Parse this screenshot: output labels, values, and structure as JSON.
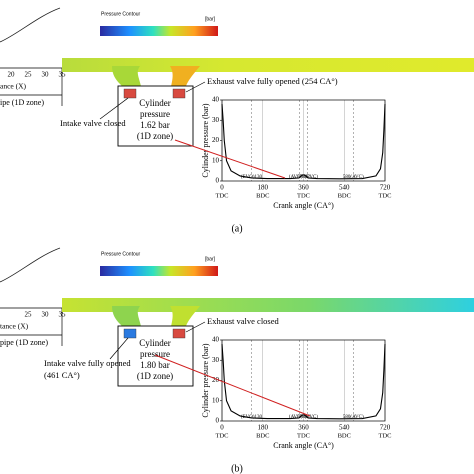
{
  "panels": [
    {
      "label": "(a)",
      "legend_title": "Pressure Contour",
      "legend_unit": "[bar]",
      "dist_ticks": [
        "20",
        "25",
        "30",
        "35"
      ],
      "dist_label": "ance (X)",
      "pipe_label": "ipe (1D zone)",
      "cylinder": [
        "Cylinder",
        "pressure",
        "1.62 bar",
        "(1D zone)"
      ],
      "exhaust_note": "Exhaust valve fully opened (254 CA°)",
      "intake_note": [
        "Intake valve closed"
      ]
    },
    {
      "label": "(b)",
      "legend_title": "Pressure Contour",
      "legend_unit": "[bar]",
      "dist_ticks": [
        "25",
        "30",
        "35"
      ],
      "dist_label": "tance (X)",
      "pipe_label": "pipe (1D zone)",
      "cylinder": [
        "Cylinder",
        "pressure",
        "1.80 bar",
        "(1D zone)"
      ],
      "exhaust_note": "Exhaust valve closed",
      "intake_note": [
        "Intake valve fully opened",
        "(461 CA°)"
      ]
    }
  ],
  "chart_data": [
    {
      "type": "line",
      "x_label": "Crank angle (CA°)",
      "y_label": "Cylinder pressure (bar)",
      "xlim": [
        0,
        720
      ],
      "ylim": [
        0,
        40
      ],
      "xticks": [
        0,
        180,
        360,
        540,
        720
      ],
      "yticks": [
        0,
        10,
        20,
        30,
        40
      ],
      "xtick_notes": [
        "TDC",
        "BDC",
        "TDC",
        "BDC",
        "TDC"
      ],
      "grid": true,
      "annotations": [
        {
          "x": 130,
          "label": "(EVO)130"
        },
        {
          "x": 342,
          "label": "(AVO)342"
        },
        {
          "x": 378,
          "label": "378(EVC)"
        },
        {
          "x": 580,
          "label": "580(AVC)"
        }
      ],
      "series": [
        {
          "name": "Cylinder pressure",
          "color": "#000000",
          "x": [
            0,
            5,
            10,
            20,
            40,
            80,
            130,
            200,
            300,
            340,
            355,
            365,
            380,
            420,
            520,
            620,
            680,
            700,
            710,
            715,
            720
          ],
          "values": [
            38,
            30,
            20,
            10,
            5,
            2.5,
            1.5,
            1.2,
            1.2,
            1.5,
            3,
            3,
            1.5,
            1.2,
            1.1,
            1.2,
            2.5,
            6,
            14,
            25,
            38
          ]
        }
      ]
    },
    {
      "type": "line",
      "x_label": "Crank angle (CA°)",
      "y_label": "Cylinder pressure (bar)",
      "xlim": [
        0,
        720
      ],
      "ylim": [
        0,
        40
      ],
      "xticks": [
        0,
        180,
        360,
        540,
        720
      ],
      "yticks": [
        0,
        10,
        20,
        30,
        40
      ],
      "xtick_notes": [
        "TDC",
        "BDC",
        "TDC",
        "BDC",
        "TDC"
      ],
      "grid": true,
      "annotations": [
        {
          "x": 130,
          "label": "(EVO)130"
        },
        {
          "x": 342,
          "label": "(AVO)342"
        },
        {
          "x": 378,
          "label": "378(EVC)"
        },
        {
          "x": 580,
          "label": "580(AVC)"
        }
      ],
      "series": [
        {
          "name": "Cylinder pressure",
          "color": "#000000",
          "x": [
            0,
            5,
            10,
            20,
            40,
            80,
            130,
            200,
            300,
            340,
            355,
            365,
            380,
            420,
            520,
            620,
            680,
            700,
            710,
            715,
            720
          ],
          "values": [
            38,
            30,
            20,
            10,
            5,
            2.5,
            1.5,
            1.2,
            1.2,
            1.5,
            3,
            3,
            1.5,
            1.2,
            1.1,
            1.2,
            2.5,
            6,
            14,
            25,
            38
          ]
        }
      ]
    }
  ]
}
